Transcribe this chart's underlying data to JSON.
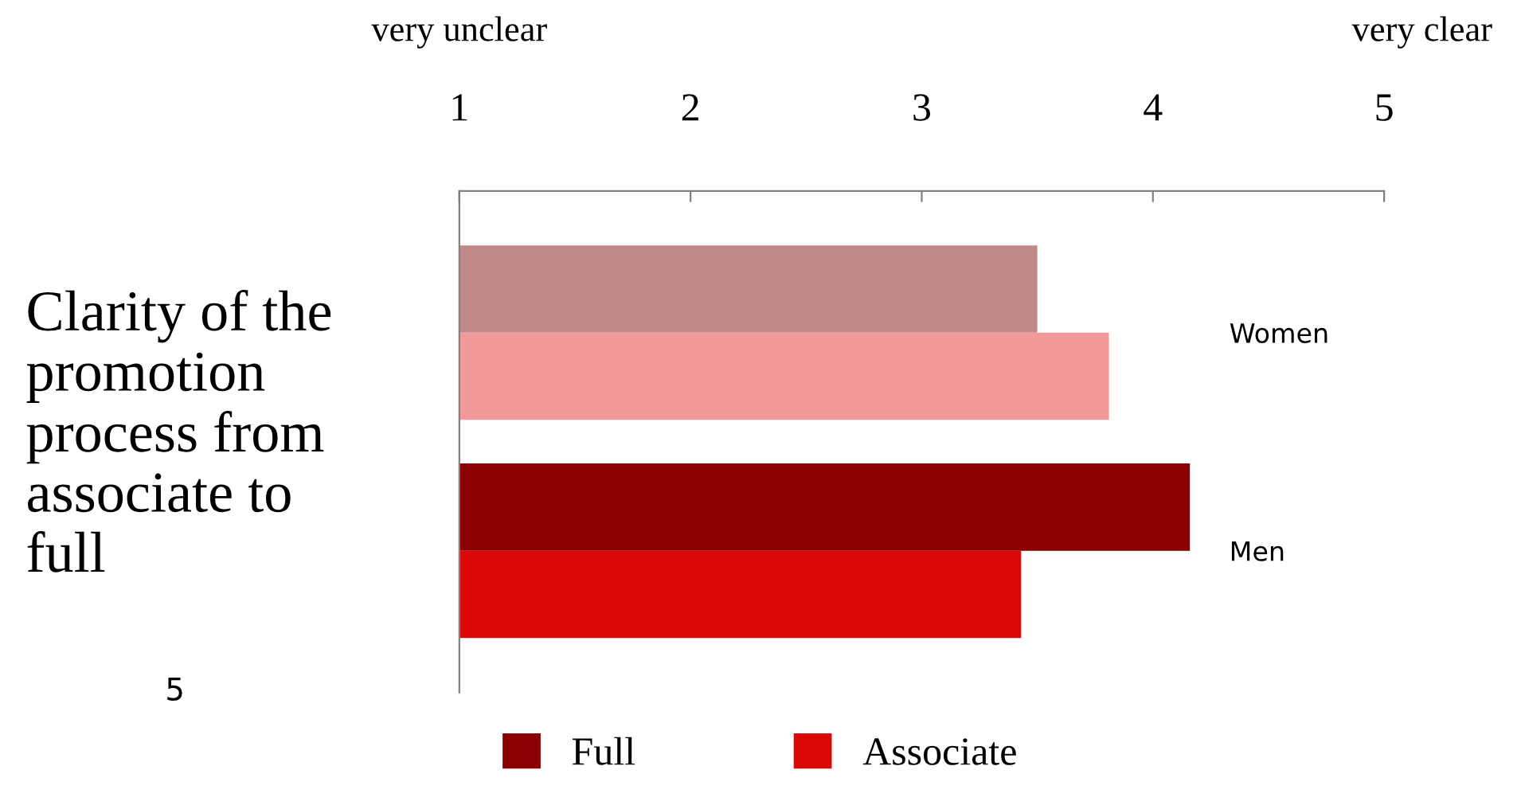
{
  "chart_data": {
    "type": "bar",
    "orientation": "horizontal",
    "ylabel": "Clarity of the\npromotion\nprocess from\nassociate to\nfull",
    "categories": [
      "Women",
      "Men"
    ],
    "series": [
      {
        "name": "Full",
        "color": "#8b0000",
        "colors": [
          "#c08a8a",
          "#8b0000"
        ],
        "values": [
          3.5,
          4.16
        ]
      },
      {
        "name": "Associate",
        "color": "#dc0808",
        "colors": [
          "#f29a9a",
          "#dc0808"
        ],
        "values": [
          3.81,
          3.43
        ]
      }
    ],
    "xlim": [
      1,
      5
    ],
    "xticks": [
      1,
      2,
      3,
      4,
      5
    ],
    "grid": false,
    "legend": "bottom",
    "annotations": [
      "very unclear",
      "very clear",
      "5"
    ]
  }
}
